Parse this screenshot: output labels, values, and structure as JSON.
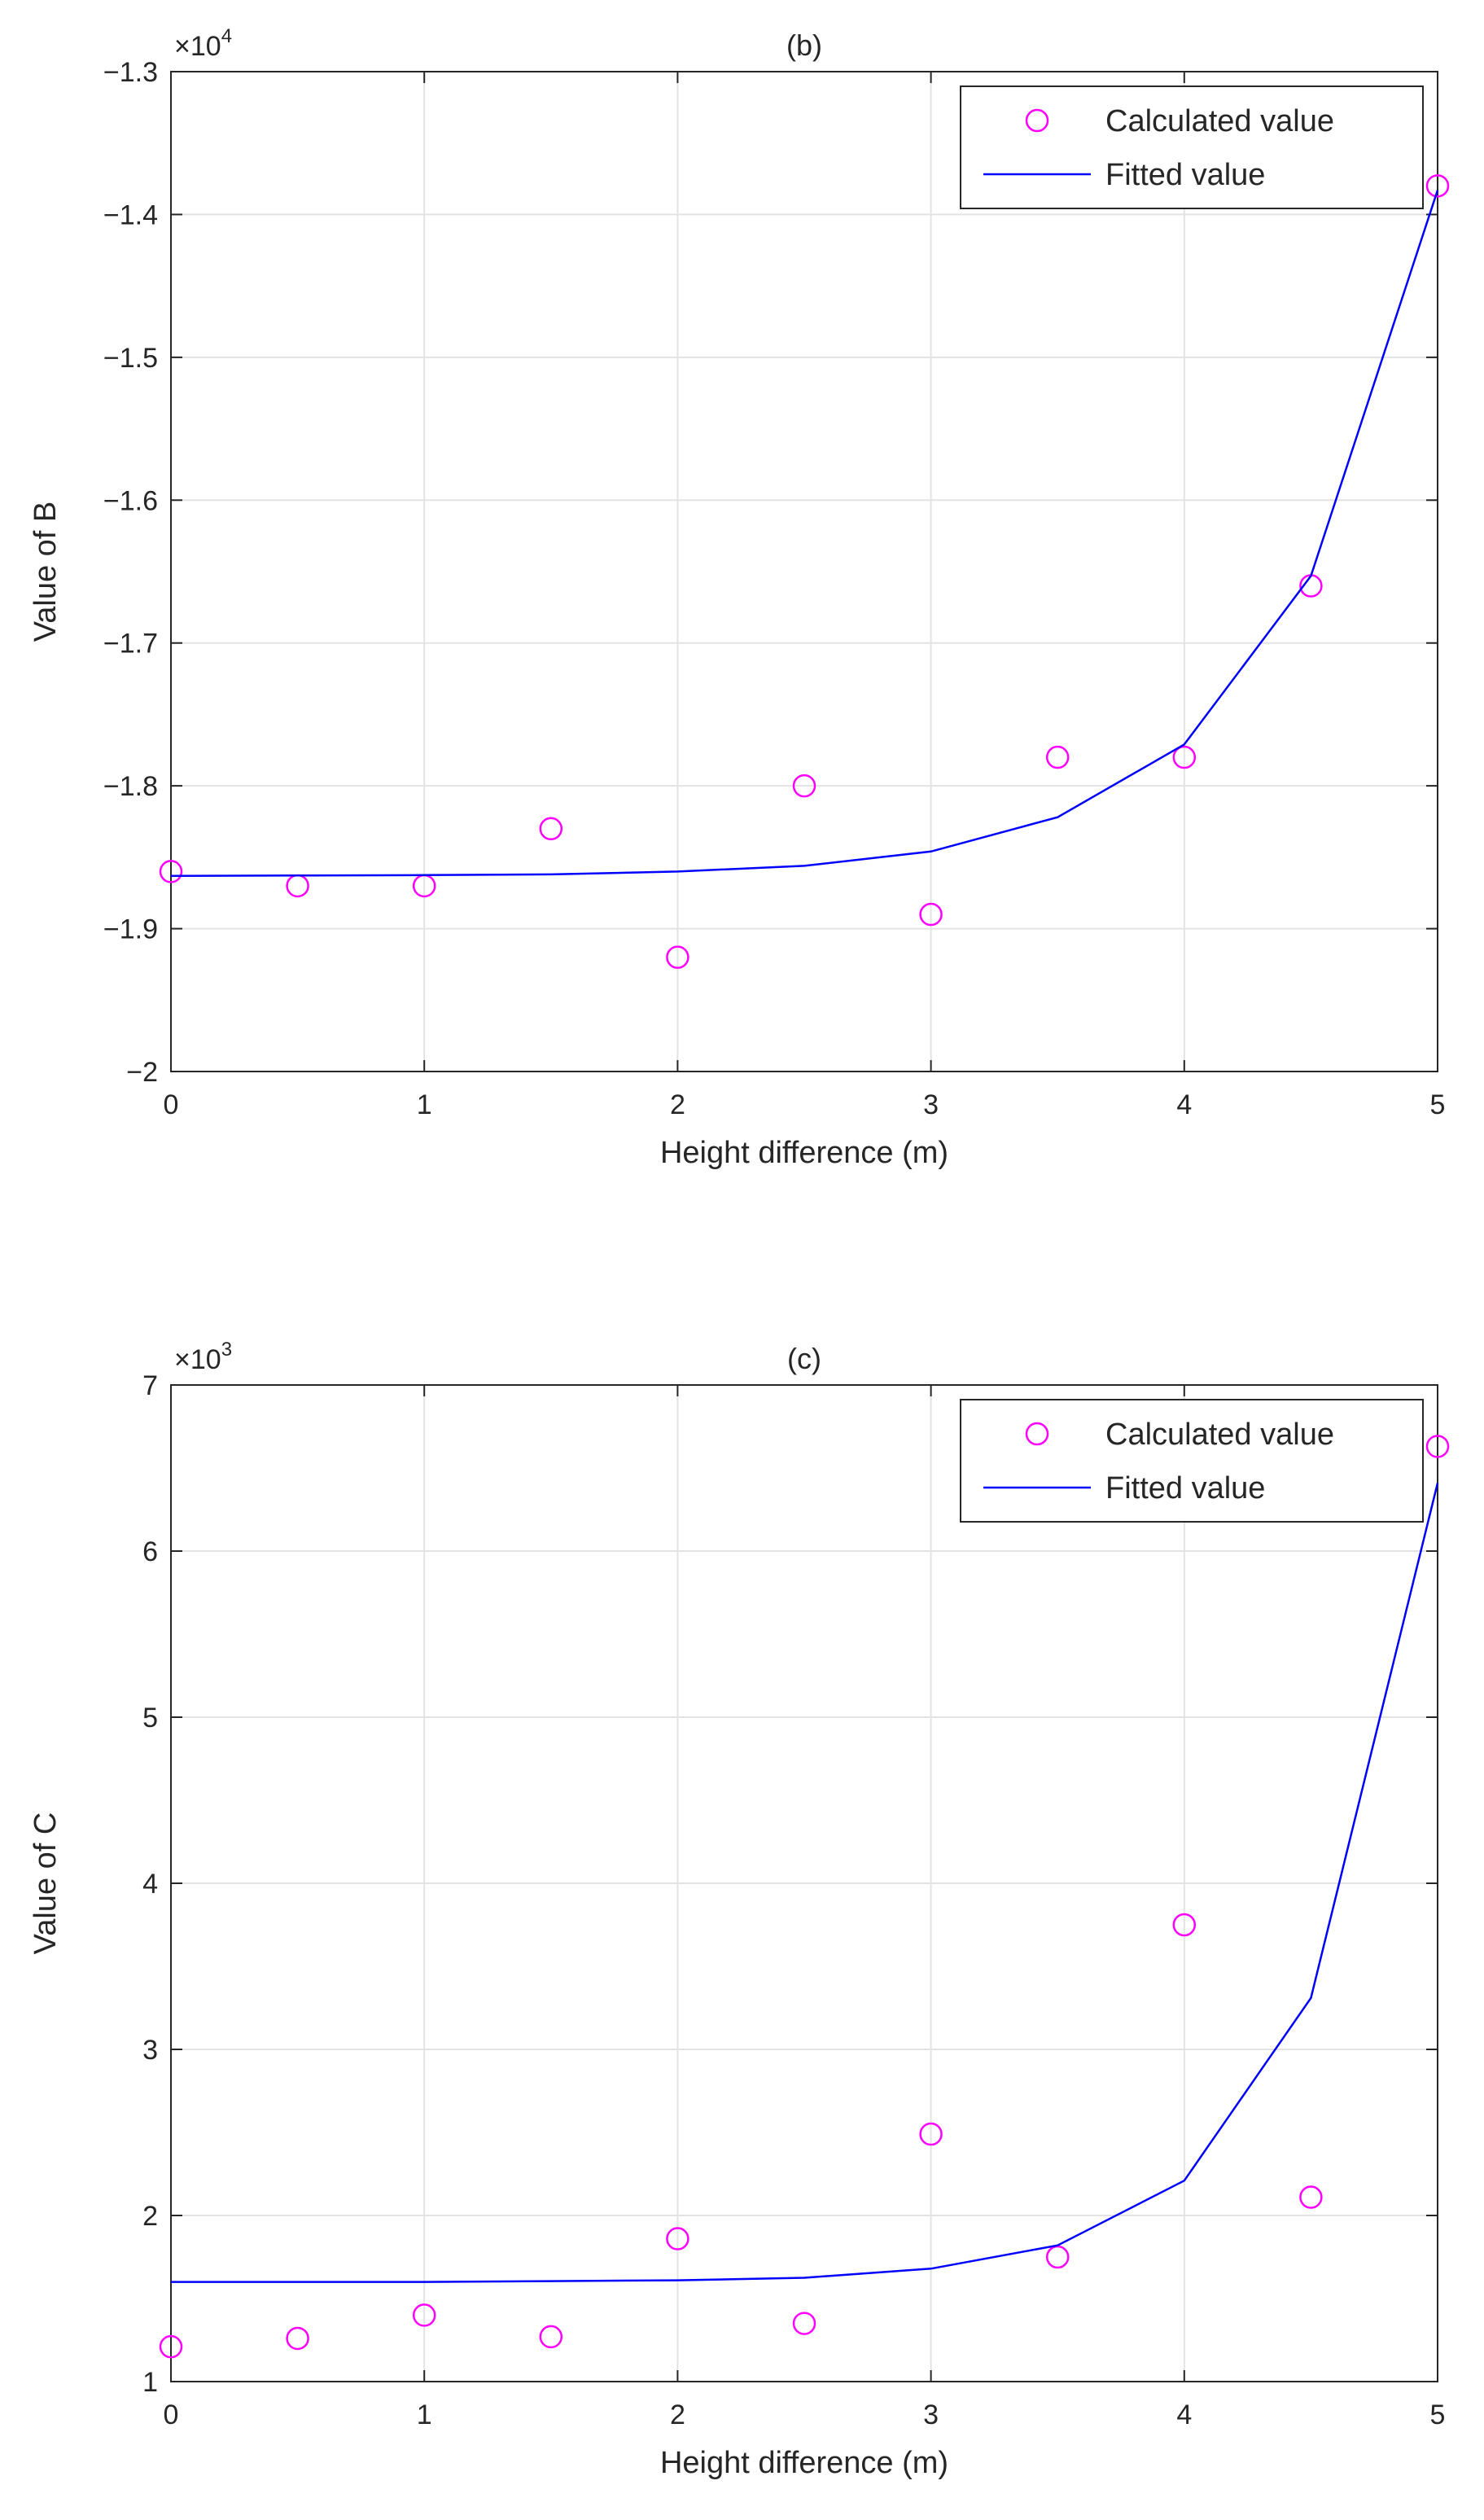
{
  "chart_data": [
    {
      "id": "b",
      "type": "scatter",
      "title": "(b)",
      "xlabel": "Height difference (m)",
      "ylabel": "Value of B",
      "exponent_label": "×10",
      "exponent_power": "4",
      "xlim": [
        0,
        5
      ],
      "ylim": [
        -2.0,
        -1.3
      ],
      "xticks": [
        0,
        1,
        2,
        3,
        4,
        5
      ],
      "xtick_labels": [
        "0",
        "1",
        "2",
        "3",
        "4",
        "5"
      ],
      "yticks": [
        -2.0,
        -1.9,
        -1.8,
        -1.7,
        -1.6,
        -1.5,
        -1.4,
        -1.3
      ],
      "ytick_labels": [
        "−2",
        "−1.9",
        "−1.8",
        "−1.7",
        "−1.6",
        "−1.5",
        "−1.4",
        "−1.3"
      ],
      "grid": true,
      "legend_position": "top-right",
      "series": [
        {
          "name": "Calculated value",
          "kind": "markers",
          "marker": "circle",
          "color": "#ff00ff",
          "x": [
            0,
            0.5,
            1,
            1.5,
            2,
            2.5,
            3,
            3.5,
            4,
            4.5,
            5
          ],
          "values": [
            -1.86,
            -1.87,
            -1.87,
            -1.83,
            -1.92,
            -1.8,
            -1.89,
            -1.78,
            -1.78,
            -1.66,
            -1.38
          ]
        },
        {
          "name": "Fitted value",
          "kind": "line",
          "color": "#0000ff",
          "x": [
            0,
            0.5,
            1,
            1.5,
            2,
            2.5,
            3,
            3.5,
            4,
            4.5,
            5
          ],
          "values": [
            -1.863,
            -1.8628,
            -1.8625,
            -1.862,
            -1.86,
            -1.856,
            -1.846,
            -1.822,
            -1.771,
            -1.653,
            -1.383
          ]
        }
      ]
    },
    {
      "id": "c",
      "type": "scatter",
      "title": "(c)",
      "xlabel": "Height difference (m)",
      "ylabel": "Value of C",
      "exponent_label": "×10",
      "exponent_power": "3",
      "xlim": [
        0,
        5
      ],
      "ylim": [
        1,
        7
      ],
      "xticks": [
        0,
        1,
        2,
        3,
        4,
        5
      ],
      "xtick_labels": [
        "0",
        "1",
        "2",
        "3",
        "4",
        "5"
      ],
      "yticks": [
        1,
        2,
        3,
        4,
        5,
        6,
        7
      ],
      "ytick_labels": [
        "1",
        "2",
        "3",
        "4",
        "5",
        "6",
        "7"
      ],
      "grid": true,
      "legend_position": "top-right",
      "series": [
        {
          "name": "Calculated value",
          "kind": "markers",
          "marker": "circle",
          "color": "#ff00ff",
          "x": [
            0,
            0.5,
            1,
            1.5,
            2,
            2.5,
            3,
            3.5,
            4,
            4.5,
            5
          ],
          "values": [
            1.21,
            1.26,
            1.4,
            1.27,
            1.86,
            1.35,
            2.49,
            1.75,
            3.75,
            2.11,
            6.63
          ]
        },
        {
          "name": "Fitted value",
          "kind": "line",
          "color": "#0000ff",
          "x": [
            0,
            0.5,
            1,
            1.5,
            2,
            2.5,
            3,
            3.5,
            4,
            4.5,
            5
          ],
          "values": [
            1.6,
            1.6,
            1.6,
            1.605,
            1.61,
            1.625,
            1.68,
            1.82,
            2.21,
            3.31,
            6.41
          ]
        }
      ]
    }
  ]
}
